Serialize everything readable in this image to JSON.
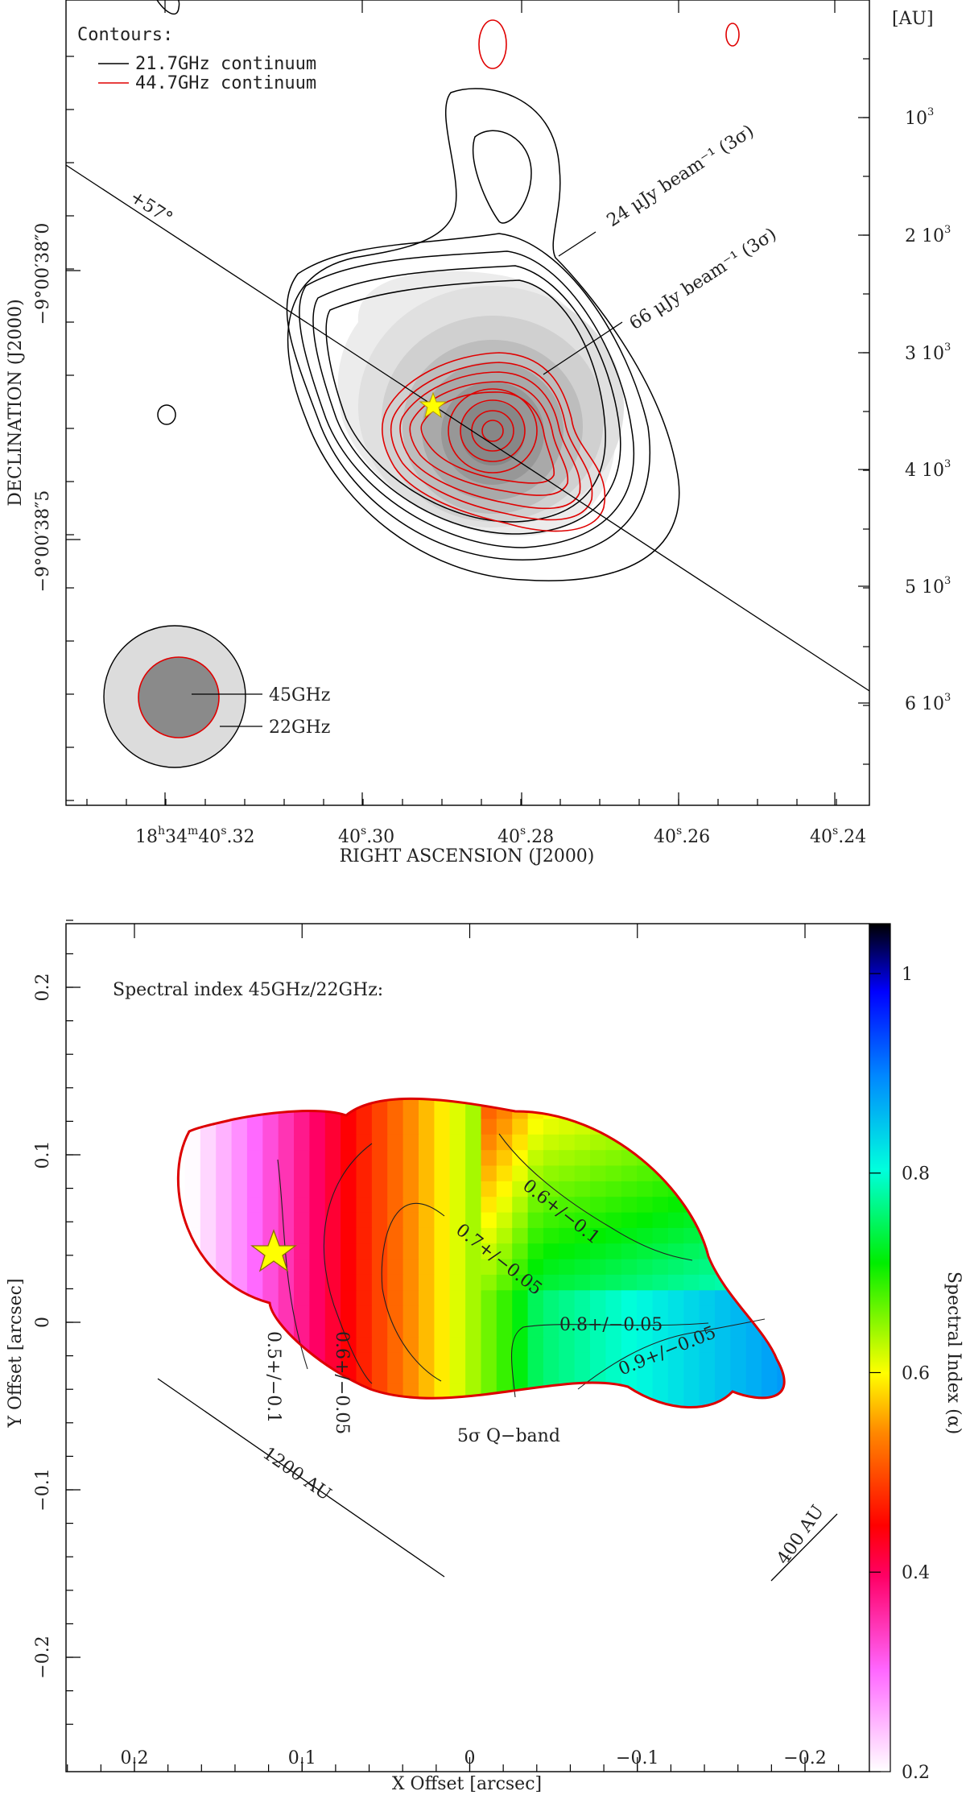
{
  "chart_data": [
    {
      "type": "contour",
      "title": "",
      "contours_label": "Contours:",
      "legend": [
        {
          "label": "21.7GHz continuum",
          "color": "#000000"
        },
        {
          "label": "44.7GHz continuum",
          "color": "#e00000"
        }
      ],
      "xlabel": "RIGHT ASCENSION (J2000)",
      "ylabel": "DECLINATION (J2000)",
      "x_ticks": [
        {
          "main": "18",
          "sup1": "h",
          "mid": "34",
          "sup2": "m",
          "sec": "40",
          "sup3": "s",
          "frac": ".32"
        },
        {
          "main": "40",
          "sup": "s",
          "frac": ".30"
        },
        {
          "main": "40",
          "sup": "s",
          "frac": ".28"
        },
        {
          "main": "40",
          "sup": "s",
          "frac": ".26"
        },
        {
          "main": "40",
          "sup": "s",
          "frac": ".24"
        }
      ],
      "y_ticks": [
        "−9°00′38″0",
        "−9°00′38″5"
      ],
      "au_axis_label": "[AU]",
      "au_ticks": [
        "10",
        "2 10",
        "3 10",
        "4 10",
        "5 10",
        "6 10"
      ],
      "au_exp": "3",
      "annotations": {
        "angle": "+57°",
        "c22": "24 μJy beam⁻¹ (3σ)",
        "c45": "66 μJy beam⁻¹ (3σ)",
        "beam45": "45GHz",
        "beam22": "22GHz"
      }
    },
    {
      "type": "heatmap",
      "title": "Spectral index 45GHz/22GHz:",
      "xlabel": "X Offset [arcsec]",
      "ylabel": "Y Offset [arcsec]",
      "xlim": [
        0.24,
        -0.24
      ],
      "ylim": [
        -0.24,
        0.24
      ],
      "x_ticks": [
        0.2,
        0.1,
        0,
        -0.1,
        -0.2
      ],
      "x_tick_labels": [
        "0.2",
        "0.1",
        "0",
        "−0.1",
        "−0.2"
      ],
      "y_ticks": [
        0.2,
        0.1,
        0,
        -0.1,
        -0.2
      ],
      "y_tick_labels": [
        "0.2",
        "0.1",
        "0",
        "−0.1",
        "−0.2"
      ],
      "colorbar": {
        "label": "Spectral Index (α)",
        "range": [
          0.2,
          1.05
        ],
        "ticks": [
          "0.2",
          "0.4",
          "0.6",
          "0.8",
          "1"
        ]
      },
      "contour_labels": [
        {
          "text": "0.5+/−0.1",
          "value": 0.5
        },
        {
          "text": "0.6+/−0.05",
          "value": 0.6
        },
        {
          "text": "0.7+/−0.05",
          "value": 0.7
        },
        {
          "text": "0.6+/−0.1",
          "value": 0.6
        },
        {
          "text": "0.8+/−0.05",
          "value": 0.8
        },
        {
          "text": "0.9+/−0.05",
          "value": 0.9
        }
      ],
      "boundary_label": "5σ Q−band",
      "scale_bars": [
        "1200 AU",
        "400 AU"
      ]
    }
  ]
}
